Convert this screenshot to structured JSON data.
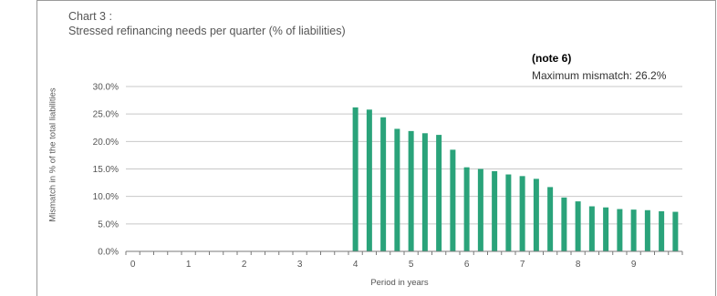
{
  "chart_data": {
    "type": "bar",
    "title": "Chart 3 :",
    "subtitle": "Stressed refinancing needs per quarter  (% of liabilities)",
    "note_label": "(note 6)",
    "annotation": "Maximum mismatch: 26.2%",
    "xlabel": "Period in years",
    "ylabel": "Mismatch in % of the total liabilities",
    "ylim": [
      0,
      30
    ],
    "y_ticks": [
      "0.0%",
      "5.0%",
      "10.0%",
      "15.0%",
      "20.0%",
      "25.0%",
      "30.0%"
    ],
    "x_ticks": [
      "0",
      "1",
      "2",
      "3",
      "4",
      "5",
      "6",
      "7",
      "8",
      "9"
    ],
    "grid": true,
    "bar_color": "#2aa37a",
    "quarters": [
      "0.25",
      "0.5",
      "0.75",
      "1",
      "1.25",
      "1.5",
      "1.75",
      "2",
      "2.25",
      "2.5",
      "2.75",
      "3",
      "3.25",
      "3.5",
      "3.75",
      "4",
      "4.25",
      "4.5",
      "4.75",
      "5",
      "5.25",
      "5.5",
      "5.75",
      "6",
      "6.25",
      "6.5",
      "6.75",
      "7",
      "7.25",
      "7.5",
      "7.75",
      "8",
      "8.25",
      "8.5",
      "8.75",
      "9",
      "9.25",
      "9.5",
      "9.75",
      "10"
    ],
    "values": [
      0,
      0,
      0,
      0,
      0,
      0,
      0,
      0,
      0,
      0,
      0,
      0,
      0,
      0,
      0,
      0,
      26.2,
      25.8,
      24.4,
      22.3,
      21.9,
      21.5,
      21.2,
      18.5,
      15.3,
      15.0,
      14.6,
      14.0,
      13.7,
      13.2,
      11.7,
      9.8,
      9.1,
      8.2,
      8.0,
      7.7,
      7.6,
      7.5,
      7.3,
      7.2
    ]
  }
}
